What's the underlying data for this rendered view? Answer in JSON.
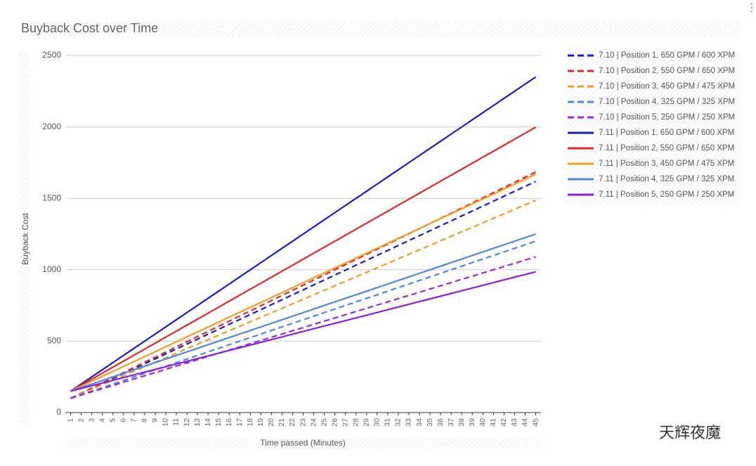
{
  "chart_data": {
    "type": "line",
    "title": "Buyback Cost over Time",
    "x_label": "Time passed (Minutes)",
    "y_label": "Buyback Cost",
    "x": [
      1,
      2,
      3,
      4,
      5,
      6,
      7,
      8,
      9,
      10,
      11,
      12,
      13,
      14,
      15,
      16,
      17,
      18,
      19,
      20,
      21,
      22,
      23,
      24,
      25,
      26,
      27,
      28,
      29,
      30,
      31,
      32,
      33,
      34,
      35,
      36,
      37,
      38,
      39,
      40,
      41,
      42,
      43,
      44,
      45
    ],
    "xlim": [
      0.5,
      45.5
    ],
    "ylim": [
      0,
      2500
    ],
    "yticks": [
      0,
      500,
      1000,
      1500,
      2000,
      2500
    ],
    "grid": true,
    "legend": "right",
    "watermark": "天辉夜魔",
    "series": [
      {
        "name": "7.10 | Position 1, 650 GPM / 600 XPM",
        "color": "#1a1acb",
        "dashed": true,
        "values": [
          100,
          135,
          169,
          204,
          238,
          273,
          307,
          342,
          376,
          411,
          445,
          480,
          514,
          549,
          583,
          618,
          652,
          687,
          721,
          756,
          790,
          825,
          859,
          894,
          928,
          963,
          997,
          1032,
          1066,
          1101,
          1135,
          1170,
          1204,
          1239,
          1273,
          1308,
          1342,
          1377,
          1411,
          1446,
          1480,
          1515,
          1549,
          1584,
          1618
        ]
      },
      {
        "name": "7.10 | Position 2, 550 GPM / 650 XPM",
        "color": "#e3262a",
        "dashed": true,
        "values": [
          100,
          136,
          172,
          208,
          244,
          280,
          316,
          352,
          388,
          424,
          460,
          496,
          532,
          568,
          604,
          640,
          676,
          712,
          748,
          784,
          820,
          856,
          892,
          928,
          964,
          1000,
          1036,
          1072,
          1108,
          1144,
          1180,
          1216,
          1252,
          1288,
          1324,
          1360,
          1396,
          1432,
          1468,
          1504,
          1540,
          1576,
          1612,
          1648,
          1684
        ]
      },
      {
        "name": "7.10 | Position 3, 450 GPM / 475 XPM",
        "color": "#f39c1e",
        "dashed": true,
        "values": [
          100,
          132,
          163,
          195,
          226,
          258,
          289,
          321,
          352,
          384,
          415,
          447,
          478,
          510,
          541,
          573,
          604,
          636,
          667,
          699,
          730,
          762,
          793,
          825,
          856,
          888,
          919,
          951,
          982,
          1014,
          1045,
          1077,
          1108,
          1140,
          1171,
          1203,
          1234,
          1266,
          1297,
          1329,
          1360,
          1392,
          1423,
          1455,
          1486
        ]
      },
      {
        "name": "7.10 | Position 4, 325 GPM / 325 XPM",
        "color": "#4f86df",
        "dashed": true,
        "values": [
          100,
          125,
          150,
          175,
          200,
          225,
          250,
          275,
          300,
          325,
          350,
          375,
          400,
          425,
          450,
          475,
          500,
          525,
          550,
          575,
          600,
          625,
          650,
          675,
          700,
          725,
          750,
          775,
          800,
          825,
          850,
          875,
          900,
          925,
          950,
          975,
          1000,
          1025,
          1050,
          1075,
          1100,
          1125,
          1150,
          1175,
          1200
        ]
      },
      {
        "name": "7.10 | Position 5, 250 GPM / 250 XPM",
        "color": "#9a2ad8",
        "dashed": true,
        "values": [
          100,
          123,
          145,
          168,
          190,
          213,
          235,
          258,
          280,
          303,
          325,
          348,
          370,
          393,
          415,
          438,
          460,
          483,
          505,
          528,
          550,
          573,
          595,
          618,
          640,
          663,
          685,
          708,
          730,
          753,
          775,
          798,
          820,
          843,
          865,
          888,
          910,
          933,
          955,
          978,
          1000,
          1023,
          1045,
          1068,
          1090
        ]
      },
      {
        "name": "7.11 | Position 1, 650 GPM / 600 XPM",
        "color": "#1a1acb",
        "dashed": false,
        "values": [
          150,
          200,
          250,
          300,
          350,
          400,
          450,
          500,
          550,
          600,
          650,
          700,
          750,
          800,
          850,
          900,
          950,
          1000,
          1050,
          1100,
          1150,
          1200,
          1250,
          1300,
          1350,
          1400,
          1450,
          1500,
          1550,
          1600,
          1650,
          1700,
          1750,
          1800,
          1850,
          1900,
          1950,
          2000,
          2050,
          2100,
          2150,
          2200,
          2250,
          2300,
          2350
        ]
      },
      {
        "name": "7.11 | Position 2, 550 GPM / 650 XPM",
        "color": "#e3262a",
        "dashed": false,
        "values": [
          150,
          192,
          234,
          276,
          318,
          360,
          402,
          444,
          486,
          528,
          570,
          612,
          654,
          696,
          738,
          780,
          822,
          864,
          906,
          948,
          990,
          1032,
          1074,
          1116,
          1158,
          1200,
          1242,
          1284,
          1326,
          1368,
          1410,
          1452,
          1494,
          1536,
          1578,
          1620,
          1662,
          1704,
          1746,
          1788,
          1830,
          1872,
          1914,
          1956,
          1998
        ]
      },
      {
        "name": "7.11 | Position 3, 450 GPM / 475 XPM",
        "color": "#f39c1e",
        "dashed": false,
        "values": [
          150,
          185,
          219,
          254,
          288,
          323,
          357,
          392,
          426,
          461,
          495,
          530,
          564,
          599,
          633,
          668,
          702,
          737,
          771,
          806,
          840,
          875,
          909,
          944,
          978,
          1013,
          1047,
          1082,
          1116,
          1151,
          1185,
          1220,
          1254,
          1289,
          1323,
          1358,
          1392,
          1427,
          1461,
          1496,
          1530,
          1565,
          1599,
          1634,
          1668
        ]
      },
      {
        "name": "7.11 | Position 4, 325 GPM / 325 XPM",
        "color": "#4f86df",
        "dashed": false,
        "values": [
          150,
          175,
          200,
          225,
          250,
          275,
          300,
          325,
          350,
          375,
          400,
          425,
          450,
          475,
          500,
          525,
          550,
          575,
          600,
          625,
          650,
          675,
          700,
          725,
          750,
          775,
          800,
          825,
          850,
          875,
          900,
          925,
          950,
          975,
          1000,
          1025,
          1050,
          1075,
          1100,
          1125,
          1150,
          1175,
          1200,
          1225,
          1250
        ]
      },
      {
        "name": "7.11 | Position 5, 250 GPM / 250 XPM",
        "color": "#8a1ee0",
        "dashed": false,
        "values": [
          150,
          169,
          188,
          207,
          226,
          245,
          264,
          283,
          302,
          321,
          340,
          359,
          378,
          397,
          416,
          435,
          454,
          473,
          492,
          511,
          530,
          549,
          568,
          587,
          606,
          625,
          644,
          663,
          682,
          701,
          720,
          739,
          758,
          777,
          796,
          815,
          834,
          853,
          872,
          891,
          910,
          929,
          948,
          967,
          986
        ]
      }
    ]
  }
}
